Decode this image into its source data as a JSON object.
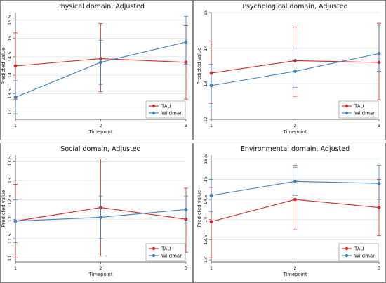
{
  "colors": {
    "tau": "#d62728",
    "wildman": "#3d7fc0",
    "grid": "#e3e3e3",
    "axis": "#333333",
    "frame": "#555555"
  },
  "chart_data": [
    {
      "type": "line",
      "title": "Physical domain, Adjusted",
      "xlabel": "Timepoint",
      "ylabel": "Predicted value",
      "x": [
        1,
        2,
        3
      ],
      "ylim": [
        12.8,
        15.7
      ],
      "yticks": [
        "13",
        "13.5",
        "14",
        "14.5",
        "15",
        "15.5"
      ],
      "grid": true,
      "legend": "bottom-right",
      "series": [
        {
          "name": "TAU",
          "color": "#d62728",
          "values": [
            14.25,
            14.45,
            14.35
          ],
          "lower": [
            13.35,
            13.55,
            13.35
          ],
          "upper": [
            15.15,
            15.4,
            15.35
          ]
        },
        {
          "name": "Wildman",
          "color": "#3d7fc0",
          "values": [
            13.4,
            14.35,
            14.9
          ],
          "lower": [
            12.95,
            13.75,
            14.3
          ],
          "upper": [
            13.85,
            14.95,
            15.6
          ]
        }
      ]
    },
    {
      "type": "line",
      "title": "Psychological domain, Adjusted",
      "xlabel": "Timepoint",
      "ylabel": "Predicted value",
      "x": [
        1,
        2,
        3
      ],
      "ylim": [
        12.0,
        15.0
      ],
      "yticks": [
        "12",
        "13",
        "14",
        "15"
      ],
      "grid": true,
      "legend": "bottom-right",
      "series": [
        {
          "name": "TAU",
          "color": "#d62728",
          "values": [
            13.3,
            13.65,
            13.6
          ],
          "lower": [
            12.45,
            12.65,
            12.55
          ],
          "upper": [
            14.2,
            14.6,
            14.7
          ]
        },
        {
          "name": "Wildman",
          "color": "#3d7fc0",
          "values": [
            12.95,
            13.35,
            13.85
          ],
          "lower": [
            12.35,
            12.9,
            13.35
          ],
          "upper": [
            13.55,
            14.0,
            14.65
          ]
        }
      ]
    },
    {
      "type": "line",
      "title": "Social domain, Adjusted",
      "xlabel": "Timepoint",
      "ylabel": "Predicted value",
      "x": [
        1,
        2,
        3
      ],
      "ylim": [
        10.9,
        13.65
      ],
      "yticks": [
        "11",
        "11.5",
        "12",
        "12.5",
        "13",
        "13.5"
      ],
      "grid": true,
      "legend": "bottom-right",
      "series": [
        {
          "name": "TAU",
          "color": "#d62728",
          "values": [
            11.95,
            12.3,
            12.0
          ],
          "lower": [
            11.0,
            11.05,
            11.15
          ],
          "upper": [
            12.9,
            13.55,
            12.8
          ]
        },
        {
          "name": "Wildman",
          "color": "#3d7fc0",
          "values": [
            11.95,
            12.05,
            12.25
          ],
          "lower": [
            11.4,
            11.5,
            11.9
          ],
          "upper": [
            12.5,
            12.6,
            12.6
          ]
        }
      ]
    },
    {
      "type": "line",
      "title": "Environmental domain, Adjusted",
      "xlabel": "Timepoint",
      "ylabel": "Predicted value",
      "x": [
        1,
        2,
        3
      ],
      "ylim": [
        12.95,
        15.6
      ],
      "yticks": [
        "13",
        "13.5",
        "14",
        "14.5",
        "15",
        "15.5"
      ],
      "grid": true,
      "legend": "bottom-right",
      "series": [
        {
          "name": "TAU",
          "color": "#d62728",
          "values": [
            13.95,
            14.5,
            14.3
          ],
          "lower": [
            13.05,
            13.75,
            13.6
          ],
          "upper": [
            14.8,
            15.3,
            15.0
          ]
        },
        {
          "name": "Wildman",
          "color": "#3d7fc0",
          "values": [
            14.6,
            14.95,
            14.9
          ],
          "lower": [
            14.2,
            14.6,
            14.5
          ],
          "upper": [
            15.0,
            15.35,
            15.35
          ]
        }
      ]
    }
  ]
}
